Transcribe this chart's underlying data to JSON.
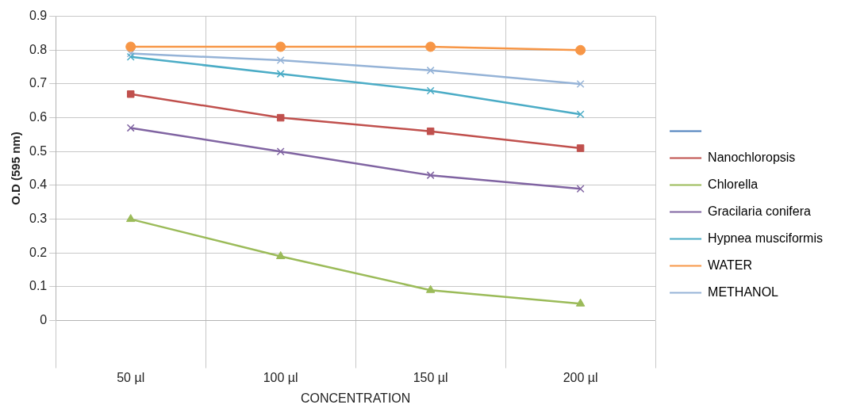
{
  "chart_data": {
    "type": "line",
    "xlabel": "CONCENTRATION",
    "ylabel": "O.D (595 nm)",
    "categories": [
      "50 µl",
      "100 µl",
      "150 µl",
      "200 µl"
    ],
    "ylim": [
      0,
      0.9
    ],
    "yticks": [
      0,
      0.1,
      0.2,
      0.3,
      0.4,
      0.5,
      0.6,
      0.7,
      0.8,
      0.9
    ],
    "grid": true,
    "legend": "right",
    "series": [
      {
        "color": "#4a7ebb",
        "marker": "diamond",
        "values": [
          null,
          null,
          null,
          null
        ]
      },
      {
        "name": "Nanochloropsis",
        "color": "#c0504d",
        "marker": "square",
        "values": [
          0.67,
          0.6,
          0.56,
          0.51
        ]
      },
      {
        "name": "Chlorella",
        "color": "#9bbb59",
        "marker": "triangle",
        "values": [
          0.3,
          0.19,
          0.09,
          0.05
        ]
      },
      {
        "name": "Gracilaria conifera",
        "color": "#8064a2",
        "marker": "cross",
        "values": [
          0.57,
          0.5,
          0.43,
          0.39
        ]
      },
      {
        "name": "Hypnea musciformis",
        "color": "#4bacc6",
        "marker": "cross",
        "values": [
          0.78,
          0.73,
          0.68,
          0.61
        ]
      },
      {
        "name": "WATER",
        "color": "#f79646",
        "marker": "circle",
        "values": [
          0.81,
          0.81,
          0.81,
          0.8
        ]
      },
      {
        "name": "METHANOL",
        "color": "#95b3d7",
        "marker": "cross",
        "values": [
          0.79,
          0.77,
          0.74,
          0.7
        ]
      }
    ]
  }
}
